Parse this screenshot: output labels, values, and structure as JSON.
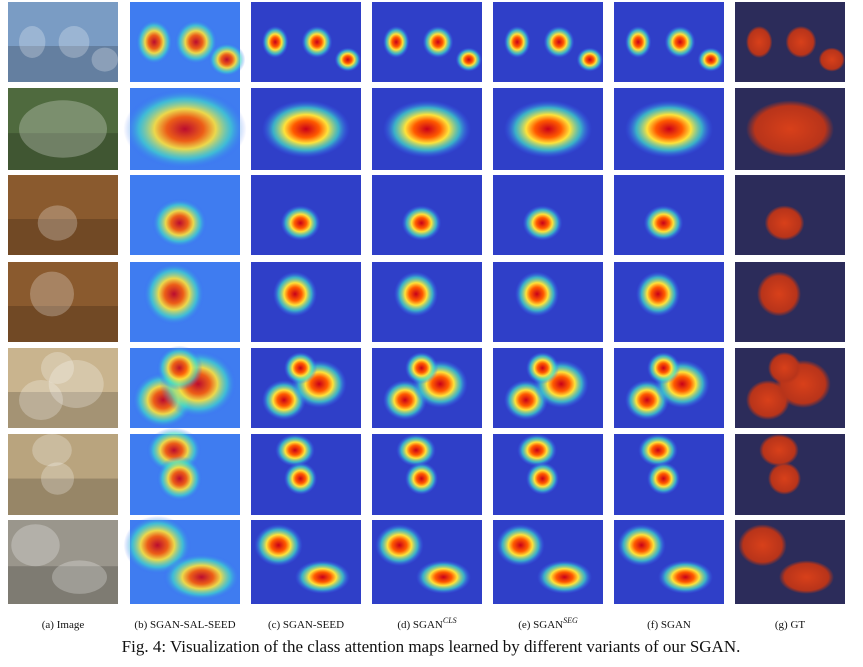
{
  "figure": {
    "columns": [
      {
        "label": "(a) Image"
      },
      {
        "label": "(b) SGAN-SAL-SEED"
      },
      {
        "label": "(c) SGAN-SEED"
      },
      {
        "label": "(d) SGAN",
        "sup": "CLS"
      },
      {
        "label": "(e) SGAN",
        "sup": "SEG"
      },
      {
        "label": "(f) SGAN"
      },
      {
        "label": "(g) GT"
      }
    ],
    "caption": "Fig. 4: Visualization of the class attention maps learned by different variants of our SGAN."
  }
}
